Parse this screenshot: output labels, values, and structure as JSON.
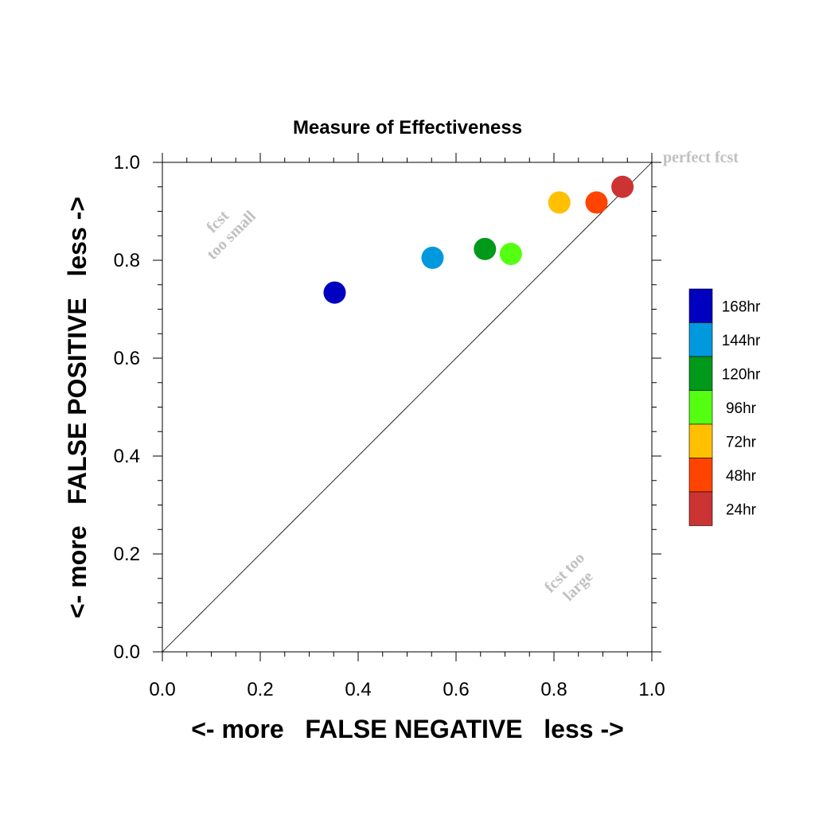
{
  "chart_data": {
    "type": "scatter",
    "title": "Measure of Effectiveness",
    "xlabel": "<- more   FALSE NEGATIVE   less ->",
    "ylabel": "<- more   FALSE POSITIVE   less ->",
    "xlim": [
      0.0,
      1.0
    ],
    "ylim": [
      0.0,
      1.0
    ],
    "x_ticks": [
      "0.0",
      "0.2",
      "0.4",
      "0.6",
      "0.8",
      "1.0"
    ],
    "y_ticks": [
      "0.0",
      "0.2",
      "0.4",
      "0.6",
      "0.8",
      "1.0"
    ],
    "grid": false,
    "legend_position": "right",
    "diagonal_reference_line": true,
    "annotations": {
      "perfect": "perfect fcst",
      "small_line1": "fcst",
      "small_line2": "too small",
      "large_line1": "fcst too",
      "large_line2": "large"
    },
    "series": [
      {
        "name": "168hr",
        "color": "#0000c0",
        "x": 0.352,
        "y": 0.734
      },
      {
        "name": "144hr",
        "color": "#0099dd",
        "x": 0.552,
        "y": 0.805
      },
      {
        "name": "120hr",
        "color": "#009919",
        "x": 0.659,
        "y": 0.823
      },
      {
        "name": "96hr",
        "color": "#55ff11",
        "x": 0.712,
        "y": 0.813
      },
      {
        "name": "72hr",
        "color": "#ffc000",
        "x": 0.811,
        "y": 0.918
      },
      {
        "name": "48hr",
        "color": "#ff4400",
        "x": 0.887,
        "y": 0.918
      },
      {
        "name": "24hr",
        "color": "#cc3333",
        "x": 0.94,
        "y": 0.95
      }
    ]
  }
}
